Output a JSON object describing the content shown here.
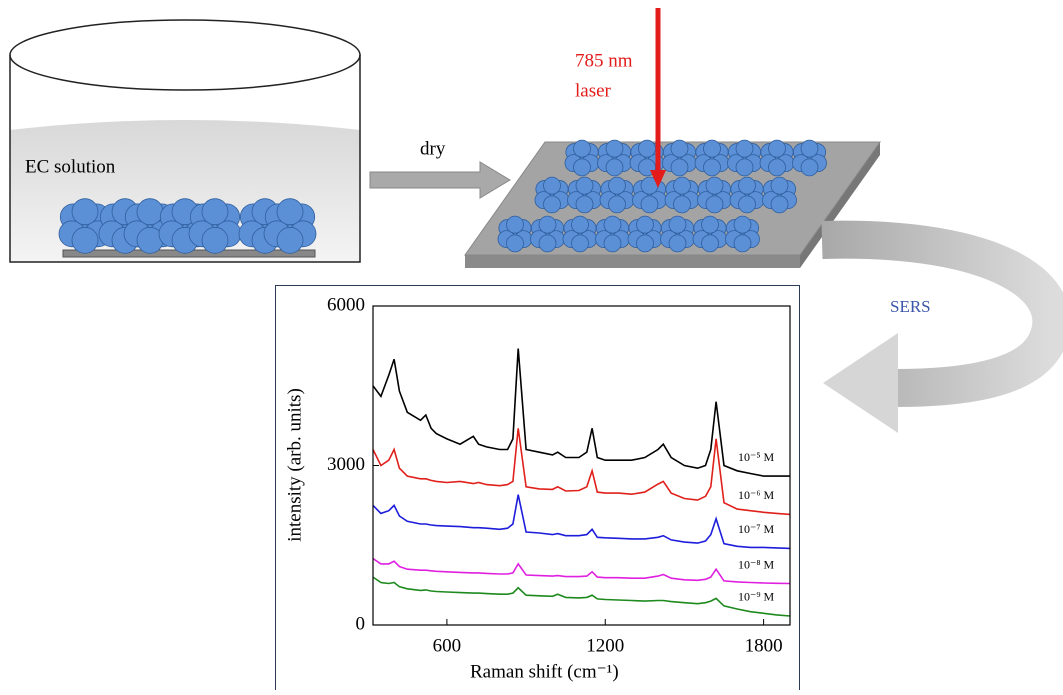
{
  "labels": {
    "solution": "EC solution",
    "dry": "dry",
    "laser_line1": "785 nm",
    "laser_line2": "laser",
    "sers": "SERS"
  },
  "chart_data": {
    "type": "line",
    "x_label": "Raman shift (cm⁻¹)",
    "y_label": "intensity (arb. units)",
    "xlim": [
      320,
      1900
    ],
    "ylim": [
      0,
      6000
    ],
    "xticks": [
      600,
      1200,
      1800
    ],
    "yticks": [
      0,
      3000,
      6000
    ],
    "x": [
      320,
      350,
      380,
      400,
      420,
      450,
      500,
      520,
      540,
      560,
      600,
      650,
      700,
      720,
      750,
      800,
      830,
      850,
      870,
      900,
      950,
      1000,
      1020,
      1050,
      1100,
      1130,
      1150,
      1170,
      1200,
      1250,
      1300,
      1350,
      1400,
      1420,
      1450,
      1500,
      1550,
      1580,
      1600,
      1620,
      1650,
      1700,
      1750,
      1800,
      1850,
      1900
    ],
    "series": [
      {
        "name": "10⁻⁵ M",
        "color": "#000000",
        "values": [
          4500,
          4300,
          4700,
          5000,
          4400,
          4000,
          3850,
          3950,
          3700,
          3600,
          3500,
          3400,
          3550,
          3400,
          3350,
          3300,
          3300,
          3500,
          5200,
          3300,
          3250,
          3200,
          3250,
          3150,
          3150,
          3250,
          3700,
          3150,
          3100,
          3100,
          3100,
          3150,
          3300,
          3400,
          3150,
          3000,
          2950,
          3000,
          3300,
          4200,
          3000,
          2900,
          2850,
          2800,
          2800,
          2800
        ]
      },
      {
        "name": "10⁻⁶ M",
        "color": "#e0201b",
        "values": [
          3300,
          3000,
          3100,
          3300,
          2950,
          2800,
          2750,
          2750,
          2720,
          2700,
          2680,
          2700,
          2660,
          2680,
          2640,
          2620,
          2640,
          2700,
          3700,
          2600,
          2560,
          2550,
          2600,
          2520,
          2530,
          2600,
          2900,
          2500,
          2480,
          2480,
          2460,
          2500,
          2650,
          2700,
          2480,
          2380,
          2350,
          2420,
          2600,
          3500,
          2300,
          2180,
          2150,
          2120,
          2100,
          2080
        ]
      },
      {
        "name": "10⁻⁷ M",
        "color": "#1d1ddb",
        "values": [
          2250,
          2100,
          2150,
          2250,
          2050,
          1950,
          1900,
          1900,
          1880,
          1870,
          1860,
          1850,
          1830,
          1830,
          1820,
          1800,
          1820,
          1900,
          2450,
          1750,
          1730,
          1700,
          1720,
          1680,
          1680,
          1700,
          1800,
          1650,
          1640,
          1630,
          1620,
          1620,
          1650,
          1680,
          1600,
          1560,
          1540,
          1580,
          1700,
          2000,
          1530,
          1480,
          1460,
          1460,
          1450,
          1440
        ]
      },
      {
        "name": "10⁻⁸ M",
        "color": "#e020e0",
        "values": [
          1250,
          1150,
          1150,
          1200,
          1100,
          1050,
          1030,
          1030,
          1020,
          1010,
          1000,
          990,
          980,
          980,
          970,
          960,
          960,
          980,
          1150,
          940,
          930,
          920,
          930,
          910,
          910,
          920,
          1000,
          900,
          890,
          890,
          880,
          880,
          920,
          950,
          880,
          850,
          840,
          860,
          900,
          1050,
          830,
          810,
          800,
          790,
          785,
          780
        ]
      },
      {
        "name": "10⁻⁹ M",
        "color": "#1e8a1e",
        "values": [
          900,
          800,
          780,
          800,
          720,
          680,
          650,
          660,
          640,
          630,
          620,
          610,
          600,
          600,
          590,
          580,
          580,
          600,
          700,
          560,
          550,
          540,
          580,
          520,
          510,
          520,
          560,
          490,
          480,
          470,
          460,
          450,
          460,
          460,
          440,
          420,
          400,
          420,
          450,
          500,
          360,
          300,
          250,
          220,
          190,
          170
        ]
      }
    ]
  }
}
